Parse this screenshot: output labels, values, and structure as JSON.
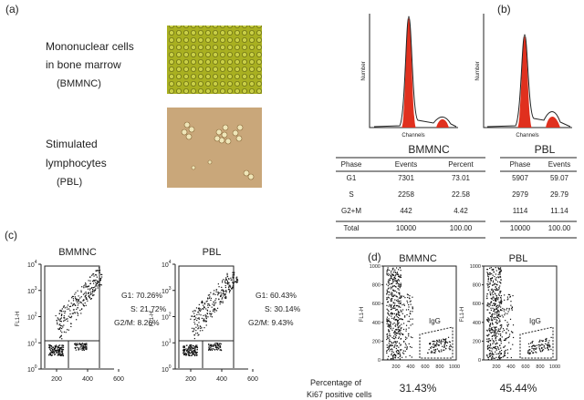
{
  "panel_a": {
    "label": "(a)",
    "bmmnc_lines": [
      "Mononuclear cells",
      "in bone marrow",
      "(BMMNC)"
    ],
    "pbl_lines": [
      "Stimulated",
      "lymphocytes",
      "(PBL)"
    ]
  },
  "panel_b": {
    "label": "(b)",
    "y_axis_label": "Number",
    "x_axis_label": "Channels",
    "bmmnc_table": {
      "title": "BMMNC",
      "header": [
        "Phase",
        "Events",
        "Percent"
      ],
      "rows": [
        [
          "G1",
          "7301",
          "73.01"
        ],
        [
          "S",
          "2258",
          "22.58"
        ],
        [
          "G2+M",
          "442",
          "4.42"
        ],
        [
          "Total",
          "10000",
          "100.00"
        ]
      ]
    },
    "pbl_table": {
      "title": "PBL",
      "header": [
        "Phase",
        "Events"
      ],
      "rows": [
        [
          "5907",
          "59.07"
        ],
        [
          "2979",
          "29.79"
        ],
        [
          "1114",
          "11.14"
        ],
        [
          "10000",
          "100.00"
        ]
      ]
    }
  },
  "panel_c": {
    "label": "(c)",
    "y_axis_label": "FL1-H",
    "yticks": [
      {
        "base": "10",
        "exponent": "4"
      },
      {
        "base": "10",
        "exponent": "3"
      },
      {
        "base": "10",
        "exponent": "2"
      },
      {
        "base": "10",
        "exponent": "1"
      },
      {
        "base": "10",
        "exponent": "0"
      }
    ],
    "xticks": [
      "200",
      "400",
      "600"
    ],
    "plots": [
      {
        "title": "BMMNC",
        "annotations": [
          "G1: 70.26%",
          "S: 21.72%",
          "G2/M: 8.26%"
        ]
      },
      {
        "title": "PBL",
        "annotations": [
          "G1: 60.43%",
          "S: 30.14%",
          "G2/M: 9.43%"
        ]
      }
    ]
  },
  "panel_d": {
    "label": "(d)",
    "y_axis_label": "FL1-H",
    "yticks": [
      "0",
      "200",
      "400",
      "600",
      "800",
      "1000"
    ],
    "xticks": [
      "200",
      "400",
      "600",
      "800",
      "1000"
    ],
    "plots": [
      {
        "title": "BMMNC",
        "gate_label": "IgG",
        "percentage": "31.43%"
      },
      {
        "title": "PBL",
        "gate_label": "IgG",
        "percentage": "45.44%"
      }
    ],
    "footnote_lines": [
      "Percentage of",
      "Ki67 positive cells"
    ]
  }
}
